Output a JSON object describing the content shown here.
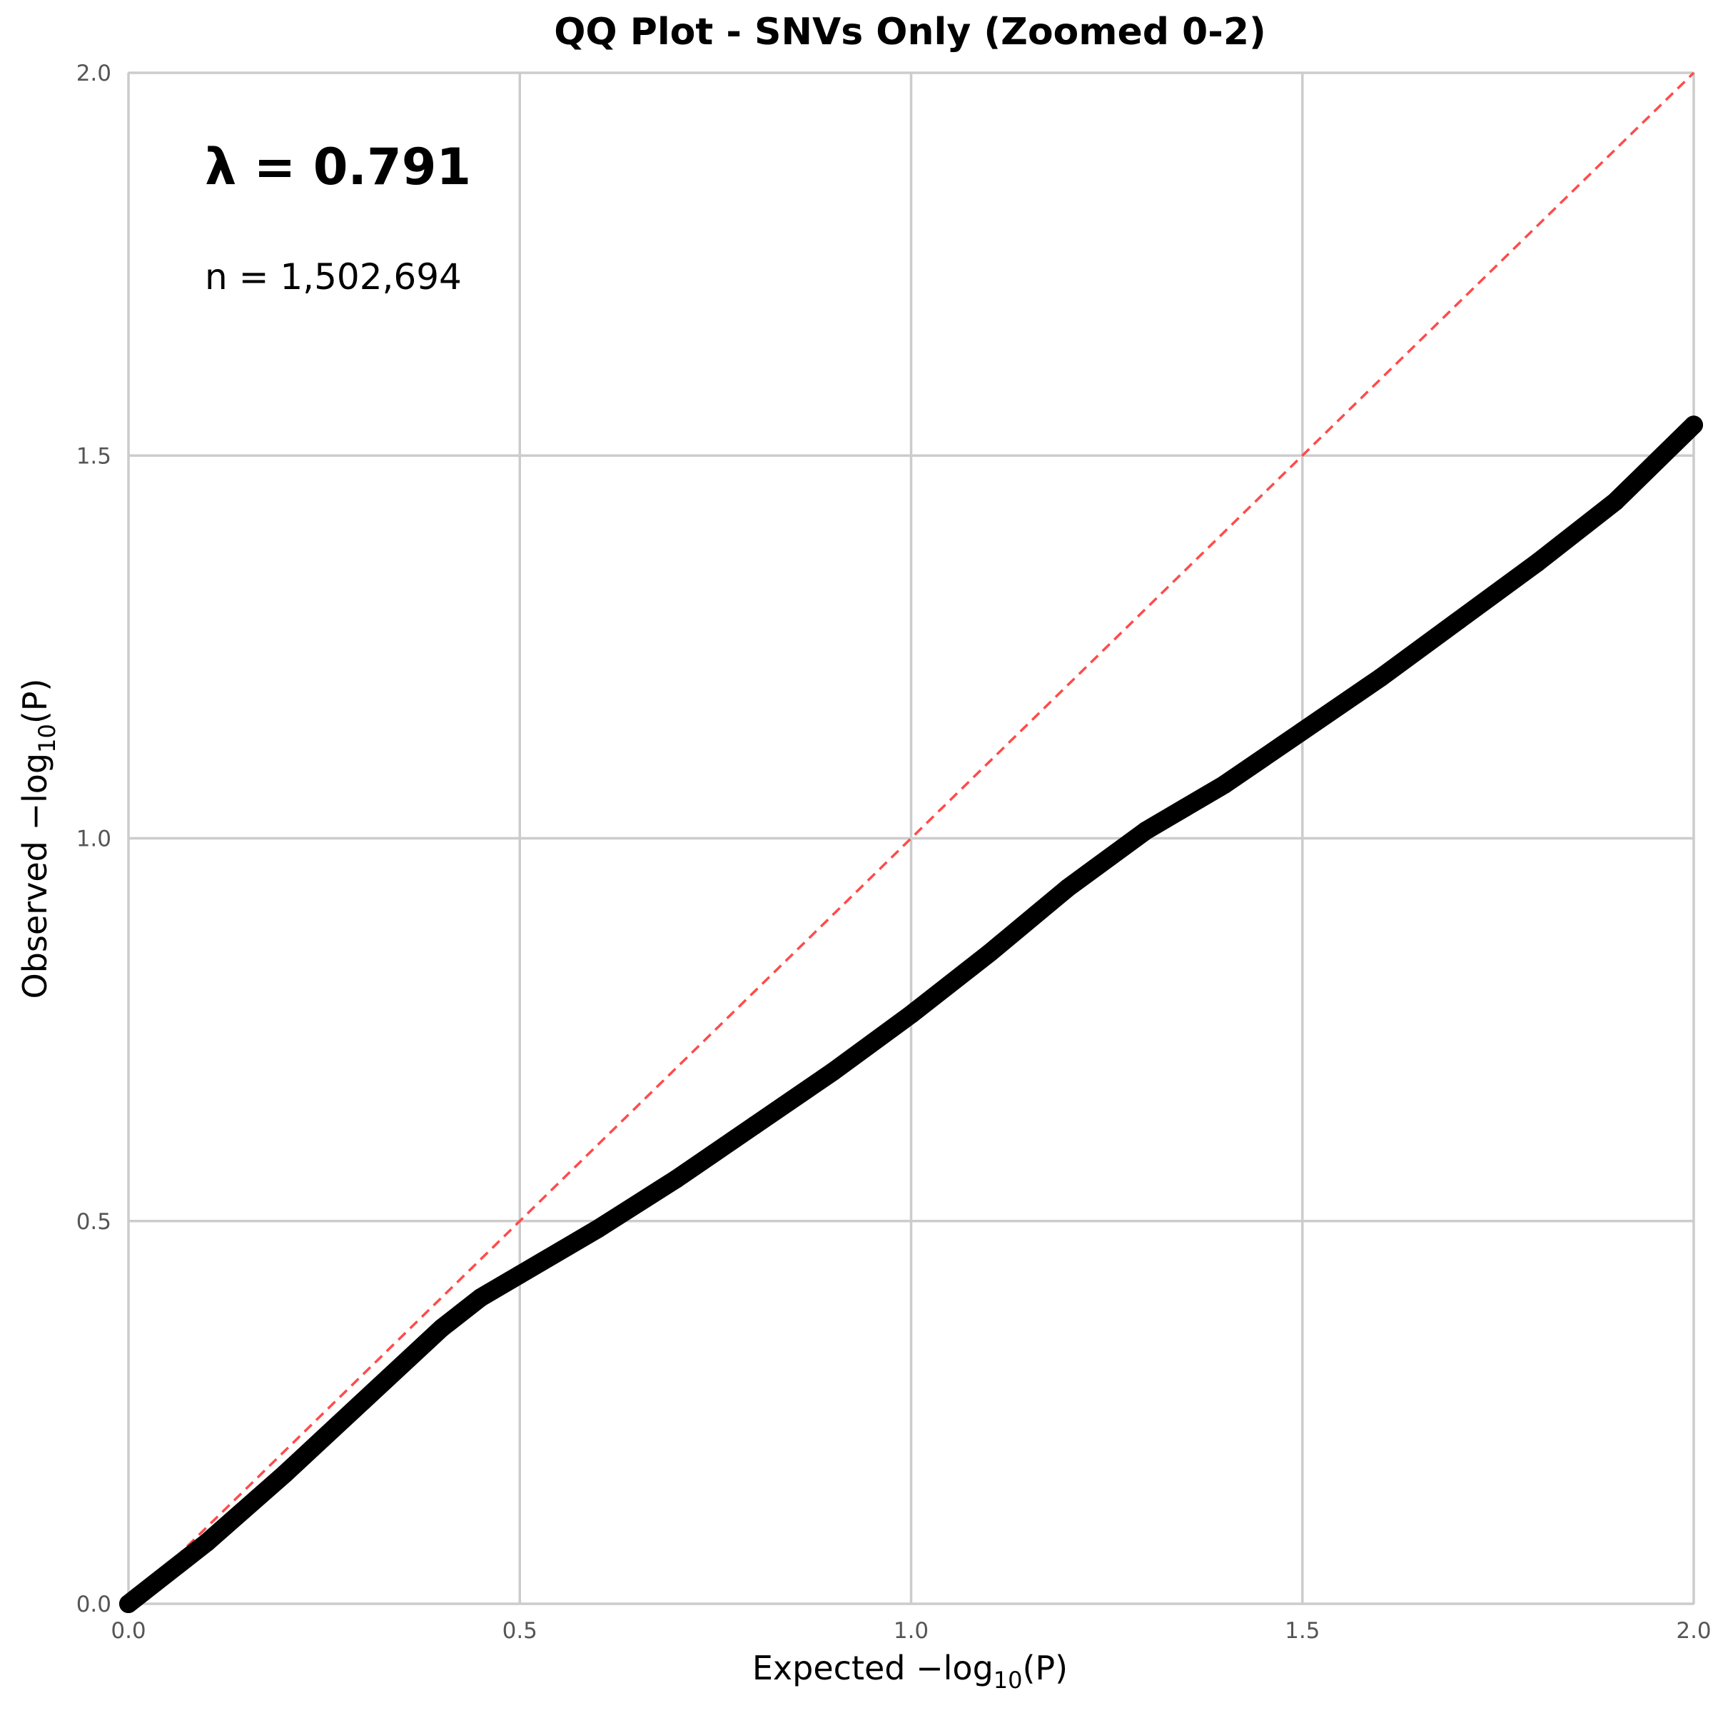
{
  "chart_data": {
    "type": "scatter",
    "title": "QQ Plot - SNVs Only (Zoomed 0-2)",
    "xlabel": "Expected −log",
    "xlabel_sub": "10",
    "xlabel_tail": "(P)",
    "ylabel": "Observed −log",
    "ylabel_sub": "10",
    "ylabel_tail": "(P)",
    "xlim": [
      0,
      2
    ],
    "ylim": [
      0,
      2
    ],
    "x_ticks": [
      "0.0",
      "0.5",
      "1.0",
      "1.5",
      "2.0"
    ],
    "y_ticks": [
      "0.0",
      "0.5",
      "1.0",
      "1.5",
      "2.0"
    ],
    "grid": true,
    "annotations": {
      "lambda": "λ = 0.791",
      "n": "n = 1,502,694"
    },
    "reference_line": {
      "style": "dashed",
      "color": "#ff4b4b",
      "from": [
        0,
        0
      ],
      "to": [
        2,
        2
      ]
    },
    "series": [
      {
        "color": "#000000",
        "x": [
          0.0,
          0.1,
          0.2,
          0.3,
          0.4,
          0.45,
          0.5,
          0.6,
          0.7,
          0.8,
          0.9,
          1.0,
          1.1,
          1.2,
          1.3,
          1.35,
          1.4,
          1.5,
          1.6,
          1.7,
          1.8,
          1.9,
          2.0
        ],
        "y": [
          0.0,
          0.08,
          0.17,
          0.265,
          0.36,
          0.4,
          0.43,
          0.49,
          0.555,
          0.625,
          0.695,
          0.77,
          0.85,
          0.935,
          1.01,
          1.04,
          1.07,
          1.14,
          1.21,
          1.285,
          1.36,
          1.44,
          1.54
        ]
      }
    ]
  }
}
